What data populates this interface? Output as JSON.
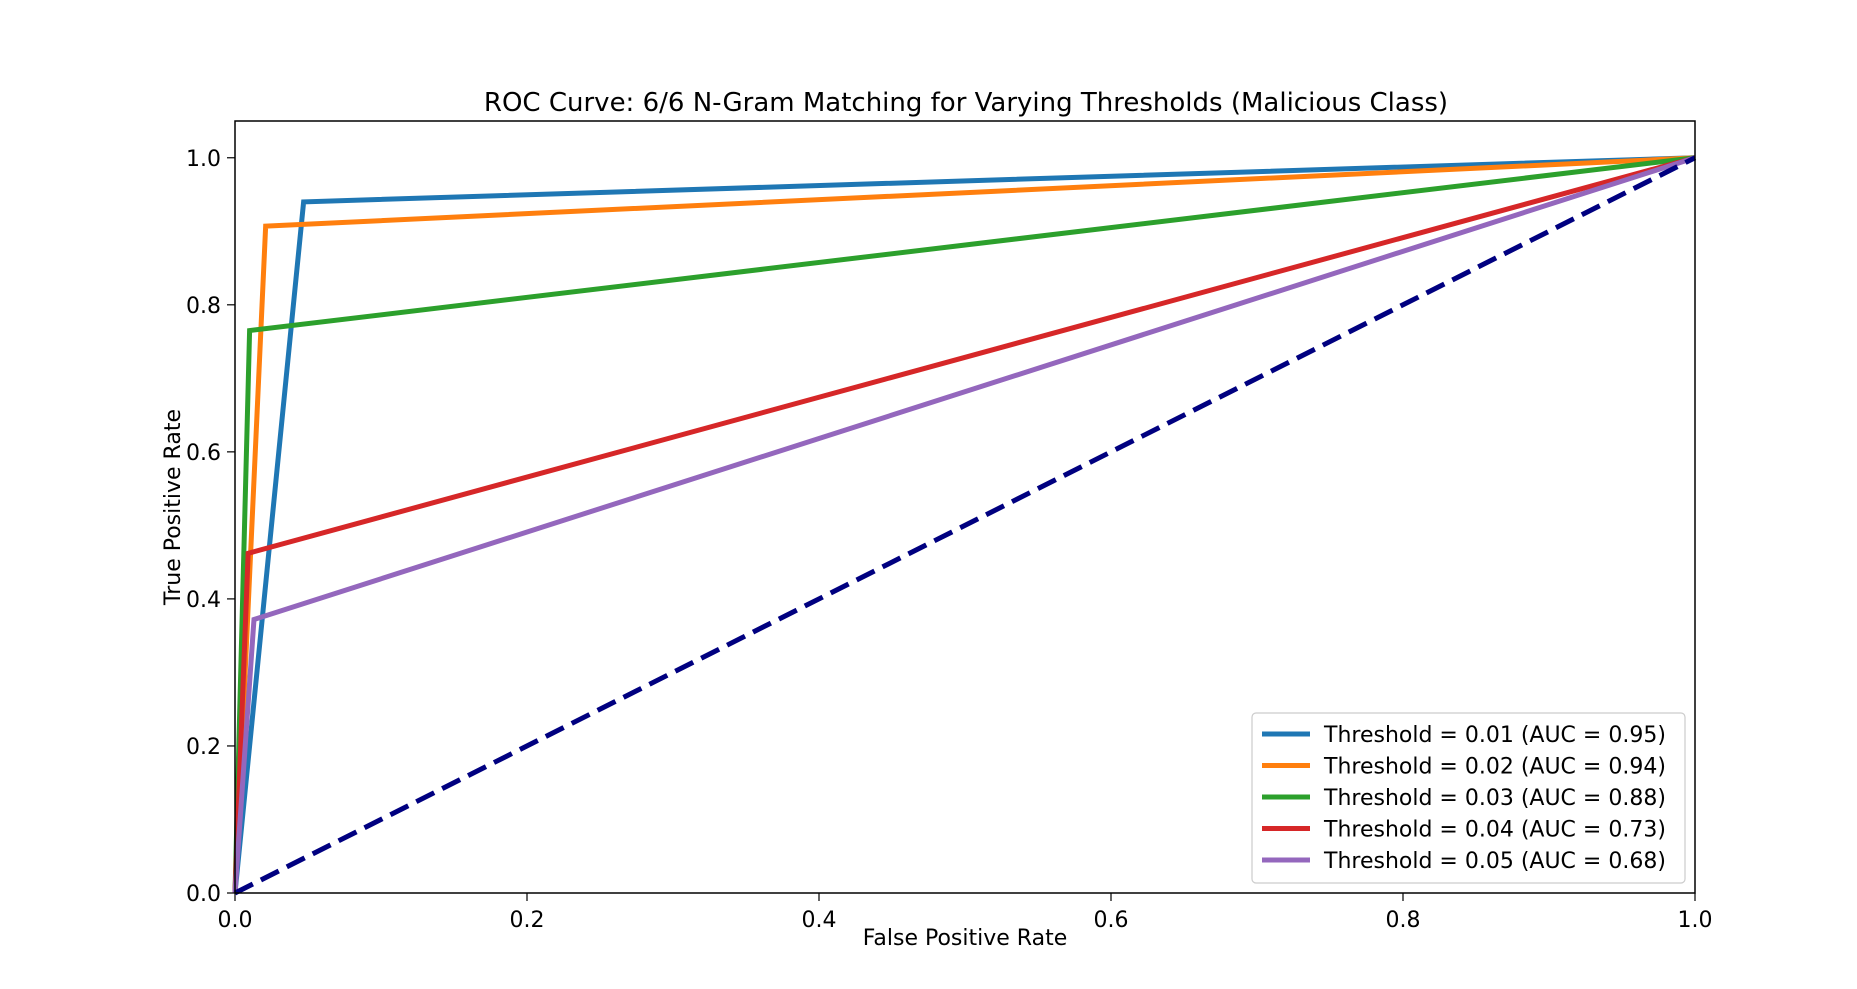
{
  "chart_data": {
    "type": "line",
    "title": "ROC Curve: 6/6 N-Gram Matching for Varying Thresholds (Malicious Class)",
    "xlabel": "False Positive Rate",
    "ylabel": "True Positive Rate",
    "xlim": [
      0.0,
      1.0
    ],
    "ylim": [
      0.0,
      1.05
    ],
    "xticks": [
      "0.0",
      "0.2",
      "0.4",
      "0.6",
      "0.8",
      "1.0"
    ],
    "yticks": [
      "0.0",
      "0.2",
      "0.4",
      "0.6",
      "0.8",
      "1.0"
    ],
    "grid": false,
    "legend_position": "lower-right",
    "series": [
      {
        "name": "Threshold = 0.01 (AUC = 0.95)",
        "color": "#1f77b4",
        "x": [
          0.0,
          0.047,
          1.0
        ],
        "y": [
          0.0,
          0.94,
          1.0
        ]
      },
      {
        "name": "Threshold = 0.02 (AUC = 0.94)",
        "color": "#ff7f0e",
        "x": [
          0.0,
          0.021,
          1.0
        ],
        "y": [
          0.0,
          0.907,
          1.0
        ]
      },
      {
        "name": "Threshold = 0.03 (AUC = 0.88)",
        "color": "#2ca02c",
        "x": [
          0.0,
          0.01,
          1.0
        ],
        "y": [
          0.0,
          0.765,
          1.0
        ]
      },
      {
        "name": "Threshold = 0.04 (AUC = 0.73)",
        "color": "#d62728",
        "x": [
          0.0,
          0.009,
          1.0
        ],
        "y": [
          0.0,
          0.462,
          1.0
        ]
      },
      {
        "name": "Threshold = 0.05 (AUC = 0.68)",
        "color": "#9467bd",
        "x": [
          0.0,
          0.013,
          1.0
        ],
        "y": [
          0.0,
          0.372,
          1.0
        ]
      }
    ],
    "reference_line": {
      "color": "#000080",
      "style": "dashed",
      "x": [
        0.0,
        1.0
      ],
      "y": [
        0.0,
        1.0
      ]
    }
  }
}
